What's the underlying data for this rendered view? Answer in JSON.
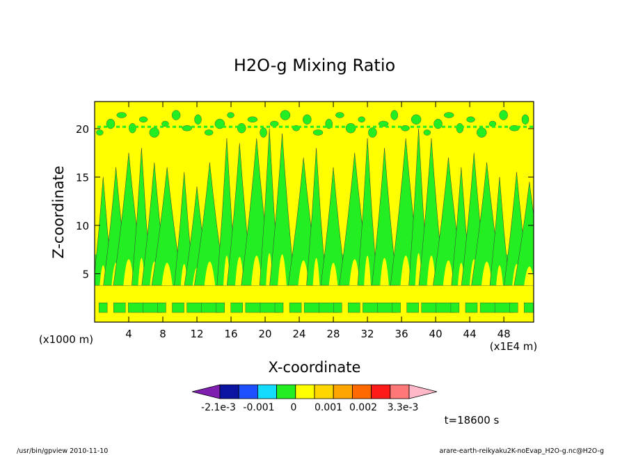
{
  "chart_data": {
    "type": "heatmap",
    "title": "H2O-g Mixing Ratio",
    "xlabel": "X-coordinate",
    "ylabel": "Z-coordinate",
    "x_unit_left": "(x1000 m)",
    "x_unit_right": "(x1E4 m)",
    "xlim": [
      0,
      51.5
    ],
    "ylim": [
      0,
      22.8
    ],
    "x_ticks": [
      "4",
      "8",
      "12",
      "16",
      "20",
      "24",
      "28",
      "32",
      "36",
      "40",
      "44",
      "48"
    ],
    "y_ticks": [
      "5",
      "10",
      "15",
      "20"
    ],
    "x_tick_values": [
      4,
      8,
      12,
      16,
      20,
      24,
      28,
      32,
      36,
      40,
      44,
      48
    ],
    "y_tick_values": [
      5,
      10,
      15,
      20
    ],
    "background_level_color": "#ffff00",
    "feature_level_color": "#22ee22",
    "plumes": [
      {
        "x": 1.0,
        "top": 15.0
      },
      {
        "x": 2.5,
        "top": 16.0
      },
      {
        "x": 4.0,
        "top": 17.5
      },
      {
        "x": 5.5,
        "top": 18.0
      },
      {
        "x": 7.0,
        "top": 16.5
      },
      {
        "x": 8.5,
        "top": 16.0
      },
      {
        "x": 10.5,
        "top": 15.5
      },
      {
        "x": 12.0,
        "top": 14.0
      },
      {
        "x": 13.5,
        "top": 16.5
      },
      {
        "x": 15.5,
        "top": 19.0
      },
      {
        "x": 17.0,
        "top": 18.5
      },
      {
        "x": 19.0,
        "top": 19.0
      },
      {
        "x": 20.5,
        "top": 20.0
      },
      {
        "x": 22.0,
        "top": 19.5
      },
      {
        "x": 24.5,
        "top": 17.0
      },
      {
        "x": 26.0,
        "top": 18.0
      },
      {
        "x": 28.0,
        "top": 16.0
      },
      {
        "x": 30.5,
        "top": 17.5
      },
      {
        "x": 32.0,
        "top": 19.0
      },
      {
        "x": 34.0,
        "top": 18.0
      },
      {
        "x": 36.5,
        "top": 19.0
      },
      {
        "x": 38.0,
        "top": 20.0
      },
      {
        "x": 39.5,
        "top": 19.0
      },
      {
        "x": 41.5,
        "top": 17.0
      },
      {
        "x": 43.0,
        "top": 16.0
      },
      {
        "x": 44.5,
        "top": 17.5
      },
      {
        "x": 46.0,
        "top": 16.5
      },
      {
        "x": 47.5,
        "top": 15.0
      },
      {
        "x": 49.5,
        "top": 15.5
      },
      {
        "x": 51.0,
        "top": 14.5
      }
    ],
    "colorbar": {
      "colors": [
        "#7f1fb0",
        "#0a14a0",
        "#1e50ff",
        "#14dcff",
        "#22ee22",
        "#ffff00",
        "#ffd700",
        "#ffa500",
        "#ff6a00",
        "#ff1a1a",
        "#ff7878",
        "#ffb8c8"
      ],
      "labels": [
        "-2.1e-3",
        "-0.001",
        "0",
        "0.001",
        "0.002",
        "3.3e-3"
      ]
    },
    "time_label": "t=18600 s"
  },
  "footer": {
    "left": "/usr/bin/gpview   2010-11-10",
    "right": "arare-earth-reikyaku2K-noEvap_H2O-g.nc@H2O-g"
  }
}
